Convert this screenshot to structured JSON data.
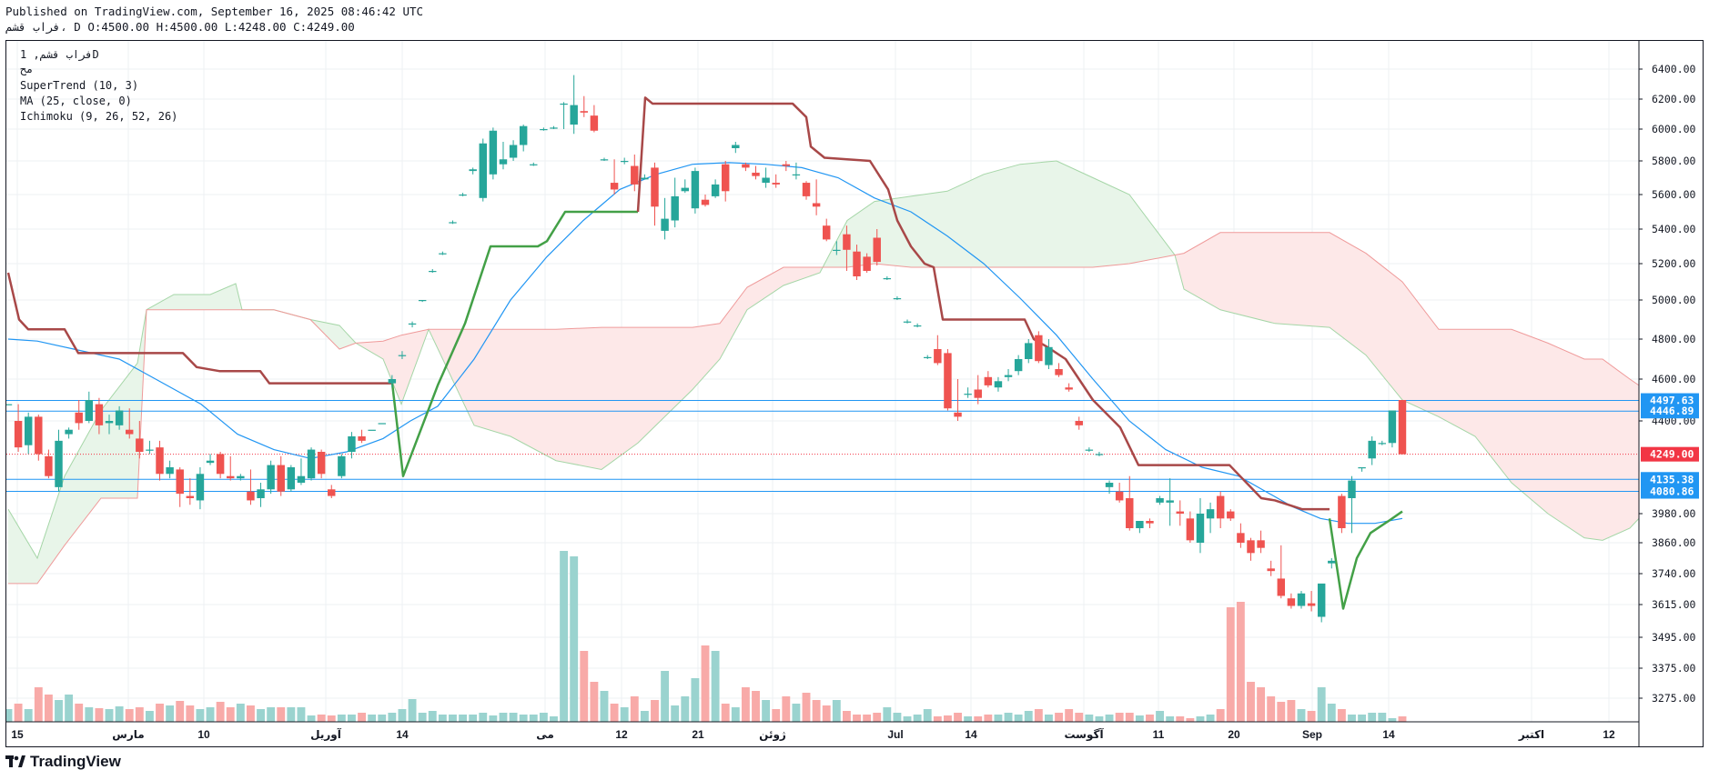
{
  "header": {
    "published_line": "Published on TradingView.com, September 16, 2025 08:46:42 UTC",
    "symbol_line": "فراب قشم، D O:4500.00 H:4500.00 L:4248.00 C:4249.00"
  },
  "legend": {
    "symbol_interval": "فراب قشم, 1D",
    "symbol_sub": "مح",
    "supertrend": "SuperTrend (10, 3)",
    "ma": "MA (25, close, 0)",
    "ichimoku": "Ichimoku (9, 26, 52, 26)"
  },
  "footer": {
    "brand": "TradingView"
  },
  "colors": {
    "up": "#26a69a",
    "down": "#ef5350",
    "supertrend_up": "#43a047",
    "supertrend_down": "#a84848",
    "ma": "#2196f3",
    "cloud_green": "#e8f5e9",
    "cloud_red": "#fde8e8",
    "hline": "#2196f3",
    "last_price": "#f23645"
  },
  "chart_data": {
    "type": "candlestick",
    "y_axis": {
      "ticks": [
        3275,
        3375,
        3495,
        3615,
        3740,
        3860,
        3980,
        4400,
        4600,
        4800,
        5000,
        5200,
        5400,
        5600,
        5800,
        6000,
        6200,
        6400
      ],
      "tick_labels": [
        "3275.00",
        "3375.00",
        "3495.00",
        "3615.00",
        "3740.00",
        "3860.00",
        "3980.00",
        "4400.00",
        "4600.00",
        "4800.00",
        "5000.00",
        "5200.00",
        "5400.00",
        "5600.00",
        "5800.00",
        "6000.00",
        "6200.00",
        "6400.00"
      ]
    },
    "x_axis_labels": [
      "15",
      "مارس",
      "10",
      "آوریل",
      "14",
      "می",
      "12",
      "21",
      "ژوئن",
      "Jul",
      "14",
      "آگوست",
      "11",
      "20",
      "Sep",
      "14",
      "اکتبر",
      "12"
    ],
    "price_lines": [
      {
        "label": "4497.63",
        "value": 4497.63
      },
      {
        "label": "4446.89",
        "value": 4446.89
      },
      {
        "label": "4135.38",
        "value": 4135.38
      },
      {
        "label": "4080.86",
        "value": 4080.86
      }
    ],
    "last_price": {
      "label": "4249.00",
      "value": 4249
    },
    "ohlc": [
      [
        4480,
        4480,
        4480,
        4480
      ],
      [
        4400,
        4480,
        4260,
        4280
      ],
      [
        4290,
        4440,
        4250,
        4420
      ],
      [
        4420,
        4430,
        4220,
        4250
      ],
      [
        4240,
        4270,
        4140,
        4150
      ],
      [
        4100,
        4360,
        4080,
        4310
      ],
      [
        4340,
        4370,
        4320,
        4360
      ],
      [
        4440,
        4500,
        4360,
        4390
      ],
      [
        4400,
        4540,
        4390,
        4500
      ],
      [
        4480,
        4510,
        4340,
        4380
      ],
      [
        4390,
        4430,
        4340,
        4400
      ],
      [
        4380,
        4470,
        4360,
        4450
      ],
      [
        4360,
        4460,
        4320,
        4340
      ],
      [
        4320,
        4400,
        4230,
        4260
      ],
      [
        4270,
        4310,
        4250,
        4270
      ],
      [
        4280,
        4310,
        4130,
        4160
      ],
      [
        4160,
        4220,
        4140,
        4190
      ],
      [
        4180,
        4190,
        4010,
        4070
      ],
      [
        4060,
        4140,
        4020,
        4050
      ],
      [
        4040,
        4190,
        4000,
        4160
      ],
      [
        4210,
        4250,
        4200,
        4220
      ],
      [
        4250,
        4260,
        4140,
        4160
      ],
      [
        4150,
        4240,
        4130,
        4140
      ],
      [
        4140,
        4160,
        4130,
        4150
      ],
      [
        4080,
        4180,
        4020,
        4040
      ],
      [
        4050,
        4120,
        4010,
        4090
      ],
      [
        4090,
        4220,
        4070,
        4200
      ],
      [
        4200,
        4240,
        4060,
        4080
      ],
      [
        4090,
        4200,
        4080,
        4190
      ],
      [
        4120,
        4230,
        4110,
        4150
      ],
      [
        4140,
        4280,
        4130,
        4270
      ],
      [
        4260,
        4270,
        4140,
        4160
      ],
      [
        4090,
        4110,
        4050,
        4060
      ],
      [
        4150,
        4250,
        4140,
        4240
      ],
      [
        4260,
        4350,
        4230,
        4330
      ],
      [
        4330,
        4360,
        4300,
        4310
      ],
      [
        4360,
        4360,
        4360,
        4360
      ],
      [
        4390,
        4390,
        4390,
        4390
      ],
      [
        4580,
        4620,
        4560,
        4600
      ],
      [
        4720,
        4740,
        4700,
        4720
      ],
      [
        4880,
        4890,
        4860,
        4880
      ],
      [
        5000,
        5000,
        4990,
        5000
      ],
      [
        5160,
        5170,
        5150,
        5160
      ],
      [
        5260,
        5270,
        5250,
        5260
      ],
      [
        5440,
        5450,
        5430,
        5440
      ],
      [
        5600,
        5610,
        5590,
        5600
      ],
      [
        5740,
        5760,
        5720,
        5750
      ],
      [
        5580,
        5940,
        5560,
        5910
      ],
      [
        5720,
        6010,
        5690,
        5990
      ],
      [
        5780,
        5920,
        5750,
        5810
      ],
      [
        5820,
        5930,
        5800,
        5900
      ],
      [
        5900,
        6030,
        5860,
        6020
      ],
      [
        5780,
        5790,
        5770,
        5780
      ],
      [
        6000,
        6010,
        5990,
        6000
      ],
      [
        6010,
        6020,
        6000,
        6010
      ],
      [
        6170,
        6180,
        6000,
        6170
      ],
      [
        6030,
        6360,
        5970,
        6160
      ],
      [
        6120,
        6220,
        6080,
        6110
      ],
      [
        6090,
        6160,
        5980,
        5990
      ],
      [
        5810,
        5820,
        5800,
        5810
      ],
      [
        5670,
        5810,
        5600,
        5630
      ],
      [
        5800,
        5820,
        5780,
        5800
      ],
      [
        5770,
        5840,
        5620,
        5660
      ],
      [
        5690,
        5720,
        5700,
        5700
      ],
      [
        5760,
        5790,
        5420,
        5530
      ],
      [
        5390,
        5580,
        5340,
        5460
      ],
      [
        5450,
        5700,
        5410,
        5590
      ],
      [
        5620,
        5690,
        5610,
        5640
      ],
      [
        5520,
        5760,
        5490,
        5740
      ],
      [
        5570,
        5600,
        5530,
        5540
      ],
      [
        5590,
        5690,
        5580,
        5660
      ],
      [
        5780,
        5800,
        5560,
        5620
      ],
      [
        5880,
        5920,
        5850,
        5900
      ],
      [
        5780,
        5790,
        5740,
        5760
      ],
      [
        5730,
        5770,
        5690,
        5710
      ],
      [
        5670,
        5760,
        5640,
        5700
      ],
      [
        5670,
        5720,
        5640,
        5660
      ],
      [
        5780,
        5800,
        5740,
        5770
      ],
      [
        5720,
        5790,
        5690,
        5720
      ],
      [
        5670,
        5680,
        5570,
        5590
      ],
      [
        5550,
        5690,
        5480,
        5530
      ],
      [
        5420,
        5460,
        5330,
        5340
      ],
      [
        5280,
        5330,
        5250,
        5280
      ],
      [
        5370,
        5420,
        5160,
        5280
      ],
      [
        5270,
        5310,
        5110,
        5130
      ],
      [
        5240,
        5260,
        5150,
        5160
      ],
      [
        5350,
        5400,
        5190,
        5210
      ],
      [
        5120,
        5130,
        5110,
        5120
      ],
      [
        5010,
        5020,
        5000,
        5010
      ],
      [
        4890,
        4900,
        4880,
        4890
      ],
      [
        4870,
        4880,
        4860,
        4870
      ],
      [
        4710,
        4720,
        4700,
        4710
      ],
      [
        4750,
        4820,
        4670,
        4680
      ],
      [
        4730,
        4750,
        4450,
        4460
      ],
      [
        4440,
        4600,
        4400,
        4420
      ],
      [
        4530,
        4560,
        4510,
        4530
      ],
      [
        4550,
        4620,
        4480,
        4510
      ],
      [
        4610,
        4640,
        4560,
        4570
      ],
      [
        4560,
        4610,
        4540,
        4590
      ],
      [
        4610,
        4650,
        4590,
        4620
      ],
      [
        4640,
        4720,
        4620,
        4700
      ],
      [
        4700,
        4800,
        4680,
        4780
      ],
      [
        4820,
        4840,
        4680,
        4690
      ],
      [
        4670,
        4800,
        4650,
        4760
      ],
      [
        4650,
        4680,
        4610,
        4620
      ],
      [
        4560,
        4580,
        4540,
        4550
      ],
      [
        4400,
        4420,
        4360,
        4380
      ],
      [
        4270,
        4280,
        4260,
        4270
      ],
      [
        4250,
        4260,
        4240,
        4250
      ],
      [
        4100,
        4130,
        4070,
        4120
      ],
      [
        4080,
        4120,
        4030,
        4040
      ],
      [
        4050,
        4150,
        3910,
        3920
      ],
      [
        3920,
        3950,
        3900,
        3950
      ],
      [
        3950,
        3960,
        3920,
        3940
      ],
      [
        4030,
        4060,
        4020,
        4050
      ],
      [
        4030,
        4140,
        3930,
        4040
      ],
      [
        3990,
        4040,
        3930,
        3980
      ],
      [
        3960,
        3990,
        3860,
        3870
      ],
      [
        3860,
        4050,
        3820,
        3980
      ],
      [
        3960,
        4030,
        3900,
        4000
      ],
      [
        4060,
        4080,
        3920,
        3960
      ],
      [
        3990,
        4000,
        3950,
        3960
      ],
      [
        3900,
        3940,
        3840,
        3860
      ],
      [
        3870,
        3880,
        3790,
        3820
      ],
      [
        3870,
        3910,
        3820,
        3840
      ],
      [
        3760,
        3790,
        3730,
        3750
      ],
      [
        3720,
        3850,
        3640,
        3650
      ],
      [
        3640,
        3660,
        3600,
        3610
      ],
      [
        3610,
        3670,
        3600,
        3660
      ],
      [
        3620,
        3670,
        3590,
        3610
      ],
      [
        3570,
        3690,
        3550,
        3700
      ],
      [
        3780,
        3800,
        3760,
        3790
      ],
      [
        4060,
        4070,
        3900,
        3920
      ],
      [
        4050,
        4150,
        3900,
        4130
      ],
      [
        4190,
        4190,
        4170,
        4190
      ],
      [
        4230,
        4330,
        4200,
        4310
      ],
      [
        4300,
        4310,
        4290,
        4300
      ],
      [
        4300,
        4450,
        4280,
        4450
      ],
      [
        4500,
        4500,
        4248,
        4249
      ]
    ],
    "volume": [
      1,
      1,
      1,
      1,
      1,
      1,
      1,
      1,
      1,
      1,
      1,
      1,
      1,
      1,
      1,
      1,
      1,
      1,
      1,
      1,
      1,
      1,
      1,
      1,
      1,
      1,
      1,
      1,
      1,
      1,
      1,
      1,
      1,
      1,
      1,
      1,
      1,
      1,
      1,
      1,
      1,
      1,
      1,
      1,
      1,
      1,
      1,
      1,
      1,
      1,
      1,
      1,
      1,
      1,
      1,
      1,
      1,
      1,
      1,
      1,
      1,
      1,
      1,
      1,
      1,
      1,
      1,
      1,
      1,
      1,
      1,
      1,
      1,
      1,
      1,
      1,
      1,
      1,
      1,
      1,
      1,
      1,
      1,
      1,
      1,
      1,
      1,
      1,
      1,
      1,
      1,
      1,
      1,
      1,
      1,
      1,
      1,
      1,
      1,
      1,
      1,
      1,
      1,
      1,
      1,
      1,
      1,
      1,
      1,
      1,
      1,
      1,
      1,
      1,
      1,
      1,
      1,
      1,
      1,
      1,
      1,
      1,
      1,
      1,
      1,
      1,
      1,
      1,
      1,
      1,
      1,
      1,
      1,
      1,
      1,
      1,
      1,
      1,
      1,
      1,
      1,
      1,
      1,
      1,
      1
    ]
  }
}
